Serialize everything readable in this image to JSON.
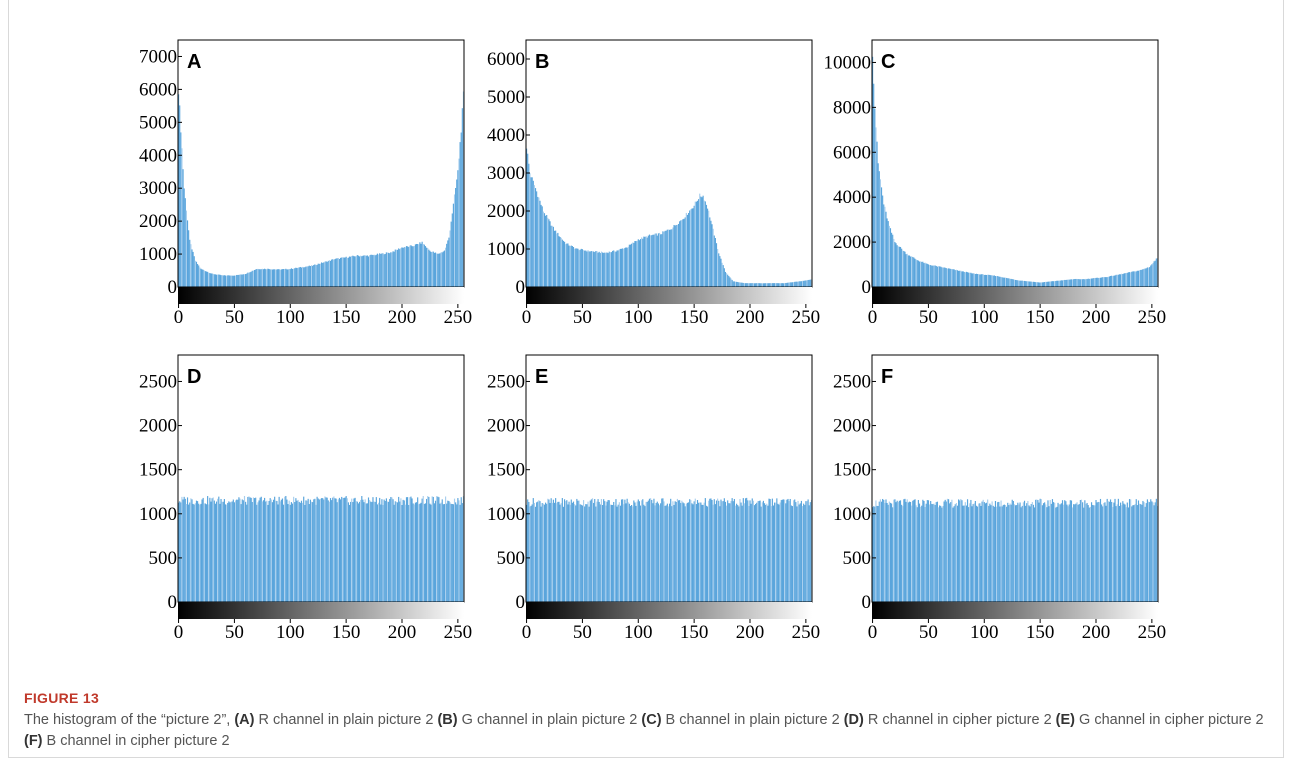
{
  "figure": {
    "label": "FIGURE 13",
    "caption_parts": [
      {
        "t": "The histogram of the “picture 2”, ",
        "b": false
      },
      {
        "t": "(A)",
        "b": true
      },
      {
        "t": " R channel in plain picture 2 ",
        "b": false
      },
      {
        "t": "(B)",
        "b": true
      },
      {
        "t": " G channel in plain picture 2 ",
        "b": false
      },
      {
        "t": "(C)",
        "b": true
      },
      {
        "t": " B channel in plain picture 2 ",
        "b": false
      },
      {
        "t": "(D)",
        "b": true
      },
      {
        "t": " R channel in cipher picture 2 ",
        "b": false
      },
      {
        "t": "(E)",
        "b": true
      },
      {
        "t": " G channel in cipher picture 2 ",
        "b": false
      },
      {
        "t": "(F)",
        "b": true
      },
      {
        "t": " B channel in cipher picture 2",
        "b": false
      }
    ]
  },
  "colors": {
    "bar": "#5aa5dc",
    "bar_light": "#a9cfee"
  },
  "chart_data": [
    {
      "panel_letter": "A",
      "type": "bar",
      "xlim": [
        0,
        255
      ],
      "ylim": [
        0,
        7500
      ],
      "xticks": [
        "0",
        "50",
        "100",
        "150",
        "200",
        "250"
      ],
      "yticks": [
        "0",
        "1000",
        "2000",
        "3000",
        "4000",
        "5000",
        "6000",
        "7000"
      ],
      "x": [
        0,
        5,
        10,
        15,
        20,
        30,
        40,
        50,
        60,
        70,
        80,
        90,
        100,
        110,
        120,
        130,
        140,
        150,
        160,
        170,
        180,
        190,
        200,
        210,
        218,
        225,
        232,
        238,
        242,
        246,
        250,
        253,
        255
      ],
      "values": [
        6000,
        3000,
        1400,
        800,
        550,
        400,
        350,
        350,
        400,
        550,
        550,
        530,
        550,
        600,
        650,
        750,
        850,
        900,
        950,
        950,
        1000,
        1050,
        1200,
        1250,
        1350,
        1100,
        1000,
        1100,
        1500,
        2500,
        3500,
        4800,
        5800
      ]
    },
    {
      "panel_letter": "B",
      "type": "bar",
      "xlim": [
        0,
        255
      ],
      "ylim": [
        0,
        6500
      ],
      "xticks": [
        "0",
        "50",
        "100",
        "150",
        "200",
        "250"
      ],
      "yticks": [
        "0",
        "1000",
        "2000",
        "3000",
        "4000",
        "5000",
        "6000"
      ],
      "x": [
        0,
        3,
        8,
        15,
        25,
        35,
        45,
        55,
        70,
        80,
        90,
        100,
        110,
        120,
        130,
        140,
        150,
        155,
        158,
        162,
        167,
        172,
        178,
        185,
        195,
        210,
        230,
        245,
        255
      ],
      "values": [
        3700,
        3000,
        2600,
        2000,
        1500,
        1150,
        1000,
        950,
        900,
        950,
        1050,
        1250,
        1350,
        1400,
        1550,
        1800,
        2150,
        2400,
        2400,
        2100,
        1500,
        900,
        400,
        150,
        100,
        100,
        100,
        150,
        200
      ]
    },
    {
      "panel_letter": "C",
      "type": "bar",
      "xlim": [
        0,
        255
      ],
      "ylim": [
        0,
        11000
      ],
      "xticks": [
        "0",
        "50",
        "100",
        "150",
        "200",
        "250"
      ],
      "yticks": [
        "0",
        "2000",
        "4000",
        "6000",
        "8000",
        "10000"
      ],
      "x": [
        0,
        2,
        5,
        10,
        15,
        20,
        30,
        40,
        50,
        60,
        70,
        80,
        90,
        100,
        110,
        120,
        130,
        140,
        150,
        160,
        170,
        180,
        190,
        200,
        210,
        220,
        230,
        240,
        248,
        255
      ],
      "values": [
        10500,
        8000,
        5500,
        3700,
        2700,
        2000,
        1500,
        1200,
        1000,
        900,
        800,
        700,
        600,
        550,
        500,
        400,
        300,
        250,
        200,
        250,
        300,
        350,
        350,
        400,
        450,
        550,
        650,
        750,
        900,
        1300
      ]
    },
    {
      "panel_letter": "D",
      "type": "bar",
      "xlim": [
        0,
        255
      ],
      "ylim": [
        0,
        2800
      ],
      "xticks": [
        "0",
        "50",
        "100",
        "150",
        "200",
        "250"
      ],
      "yticks": [
        "0",
        "500",
        "1000",
        "1500",
        "2000",
        "2500"
      ],
      "x": [
        0,
        255
      ],
      "values": [
        1150,
        1150
      ]
    },
    {
      "panel_letter": "E",
      "type": "bar",
      "xlim": [
        0,
        255
      ],
      "ylim": [
        0,
        2800
      ],
      "xticks": [
        "0",
        "50",
        "100",
        "150",
        "200",
        "250"
      ],
      "yticks": [
        "0",
        "500",
        "1000",
        "1500",
        "2000",
        "2500"
      ],
      "x": [
        0,
        255
      ],
      "values": [
        1130,
        1130
      ]
    },
    {
      "panel_letter": "F",
      "type": "bar",
      "xlim": [
        0,
        255
      ],
      "ylim": [
        0,
        2800
      ],
      "xticks": [
        "0",
        "50",
        "100",
        "150",
        "200",
        "250"
      ],
      "yticks": [
        "0",
        "500",
        "1000",
        "1500",
        "2000",
        "2500"
      ],
      "x": [
        0,
        255
      ],
      "values": [
        1120,
        1120
      ]
    }
  ]
}
